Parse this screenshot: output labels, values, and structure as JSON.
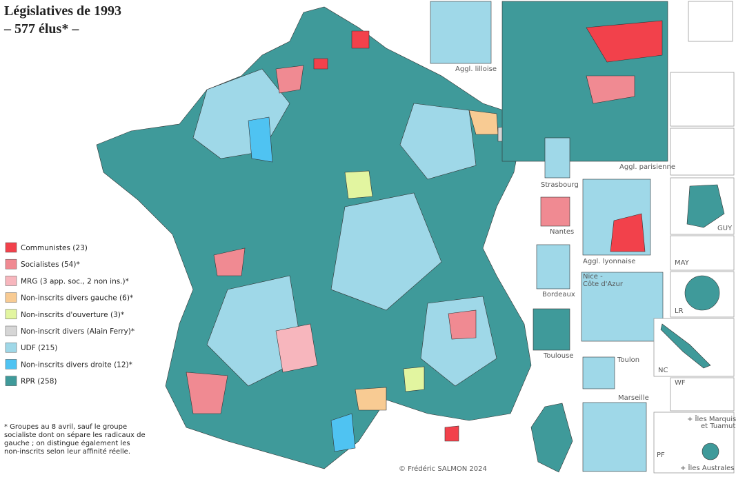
{
  "header": {
    "title": "Législatives de 1993",
    "subtitle": "– 577 élus* –"
  },
  "legend": [
    {
      "label": "Communistes (23)",
      "color": "#f2414b"
    },
    {
      "label": "Socialistes (54)*",
      "color": "#f08a92"
    },
    {
      "label": "MRG (3 app. soc., 2 non ins.)*",
      "color": "#f7b6bd"
    },
    {
      "label": "Non-inscrits divers gauche (6)*",
      "color": "#f8cb93"
    },
    {
      "label": "Non-inscrits d'ouverture (3)*",
      "color": "#e2f5a0"
    },
    {
      "label": "Non-inscrit divers (Alain Ferry)*",
      "color": "#d6d6d6"
    },
    {
      "label": "UDF (215)",
      "color": "#9fd8e8"
    },
    {
      "label": "Non-inscrits divers droite (12)*",
      "color": "#4fc3f2"
    },
    {
      "label": "RPR (258)",
      "color": "#3f9a9a"
    }
  ],
  "footnote": [
    "* Groupes au 8 avril, sauf le groupe",
    "socialiste dont on sépare les radicaux de",
    "gauche ; on distingue également les",
    "non-inscrits selon leur affinité réelle."
  ],
  "credit": "© Frédéric SALMON 2024",
  "insets": {
    "lille": "Aggl. lilloise",
    "paris": "Aggl. parisienne",
    "strasbourg": "Strasbourg",
    "nantes": "Nantes",
    "lyon": "Aggl. lyonnaise",
    "bordeaux": "Bordeaux",
    "nice": [
      "Nice -",
      "Côte d'Azur"
    ],
    "toulouse": "Toulouse",
    "toulon": "Toulon",
    "marseille": "Marseille",
    "may": "MAY",
    "guy": "GUY",
    "lr": "LR",
    "nc": "NC",
    "wf": "WF",
    "pf": "PF",
    "marquises": [
      "+ Îles Marquises",
      "et Tuamutu"
    ],
    "australes": "+ Îles Australes"
  }
}
